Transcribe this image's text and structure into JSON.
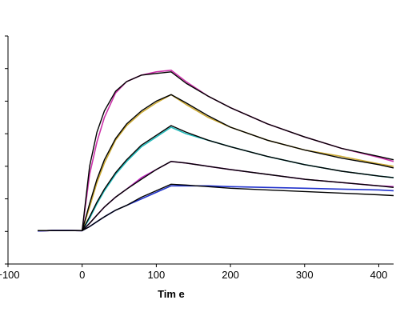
{
  "chart_data": {
    "type": "line",
    "title": "",
    "xlabel": "Tim e",
    "ylabel": "",
    "xlim": [
      -100,
      420
    ],
    "ylim": [
      -20,
      120
    ],
    "x_ticks": [
      -100,
      0,
      100,
      200,
      300,
      400
    ],
    "x_tick_labels": [
      "−100",
      "0",
      "100",
      "200",
      "300",
      "400"
    ],
    "y_ticks": [
      -20,
      0,
      20,
      40,
      60,
      80,
      100,
      120
    ],
    "grid": false,
    "fit_color": "#000000",
    "series": [
      {
        "color": "#cc33aa",
        "x": [
          -60,
          -40,
          -20,
          0,
          10,
          20,
          30,
          45,
          60,
          80,
          100,
          120,
          140,
          170,
          200,
          250,
          300,
          350,
          400,
          420
        ],
        "y": [
          0.3,
          0.6,
          0.6,
          0.5,
          35,
          55,
          70,
          85,
          92,
          96,
          98,
          99,
          92,
          83,
          76,
          66,
          58,
          51,
          45.5,
          43
        ],
        "fit_y": [
          0.5,
          0.5,
          0.5,
          0.5,
          40,
          61,
          74,
          86,
          92,
          96,
          97,
          98,
          91,
          83,
          76,
          66,
          58,
          51,
          46,
          44
        ]
      },
      {
        "color": "#ccaa33",
        "x": [
          -60,
          -40,
          -20,
          0,
          10,
          20,
          30,
          45,
          60,
          80,
          100,
          120,
          140,
          170,
          200,
          250,
          300,
          350,
          400,
          420
        ],
        "y": [
          0.3,
          0.6,
          0.6,
          0.5,
          15,
          30,
          42,
          56,
          65,
          73,
          79,
          84,
          78,
          70,
          64,
          56,
          50,
          46,
          41.5,
          40
        ],
        "fit_y": [
          0.5,
          0.5,
          0.5,
          0.5,
          17,
          32,
          44,
          57,
          66,
          74,
          80,
          84,
          79,
          71,
          64,
          56,
          50,
          45,
          41,
          39
        ]
      },
      {
        "color": "#22bbbb",
        "x": [
          -60,
          -40,
          -20,
          0,
          10,
          20,
          30,
          45,
          60,
          80,
          100,
          120,
          140,
          170,
          200,
          250,
          300,
          350,
          400,
          420
        ],
        "y": [
          0.3,
          0.6,
          0.6,
          0.5,
          8,
          17,
          25,
          35,
          43,
          52,
          58,
          64,
          60,
          56,
          52,
          46,
          41,
          37,
          34,
          33
        ],
        "fit_y": [
          0.5,
          0.5,
          0.5,
          0.5,
          9,
          18,
          26,
          36,
          44,
          53,
          59,
          65,
          61,
          56,
          52,
          46,
          41,
          37,
          34,
          33
        ]
      },
      {
        "color": "#bb22bb",
        "x": [
          -60,
          -40,
          -20,
          0,
          10,
          20,
          30,
          45,
          60,
          80,
          100,
          120,
          140,
          170,
          200,
          250,
          300,
          350,
          400,
          420
        ],
        "y": [
          0.3,
          0.6,
          0.6,
          0.5,
          5,
          10,
          15,
          21,
          26,
          33,
          38,
          43,
          42,
          40,
          38,
          35,
          32,
          30,
          28,
          27.5
        ],
        "fit_y": [
          0.5,
          0.5,
          0.5,
          0.5,
          5,
          10,
          15,
          21,
          26,
          32,
          38,
          43,
          42,
          40,
          38,
          35,
          32,
          30,
          28,
          27
        ]
      },
      {
        "color": "#2233cc",
        "x": [
          -60,
          -40,
          -20,
          0,
          10,
          20,
          30,
          45,
          60,
          80,
          100,
          120,
          140,
          170,
          200,
          250,
          300,
          350,
          400,
          420
        ],
        "y": [
          0.3,
          0.6,
          0.6,
          0.5,
          3,
          6,
          9,
          13,
          16,
          20,
          24,
          28,
          28,
          28,
          27.5,
          27,
          26.5,
          26,
          25.5,
          25
        ],
        "fit_y": [
          0.5,
          0.5,
          0.5,
          0.5,
          3,
          6,
          9,
          13,
          16,
          21,
          25,
          29,
          28.5,
          27.5,
          26.5,
          25.5,
          24.5,
          23.5,
          22.5,
          22
        ]
      }
    ]
  }
}
